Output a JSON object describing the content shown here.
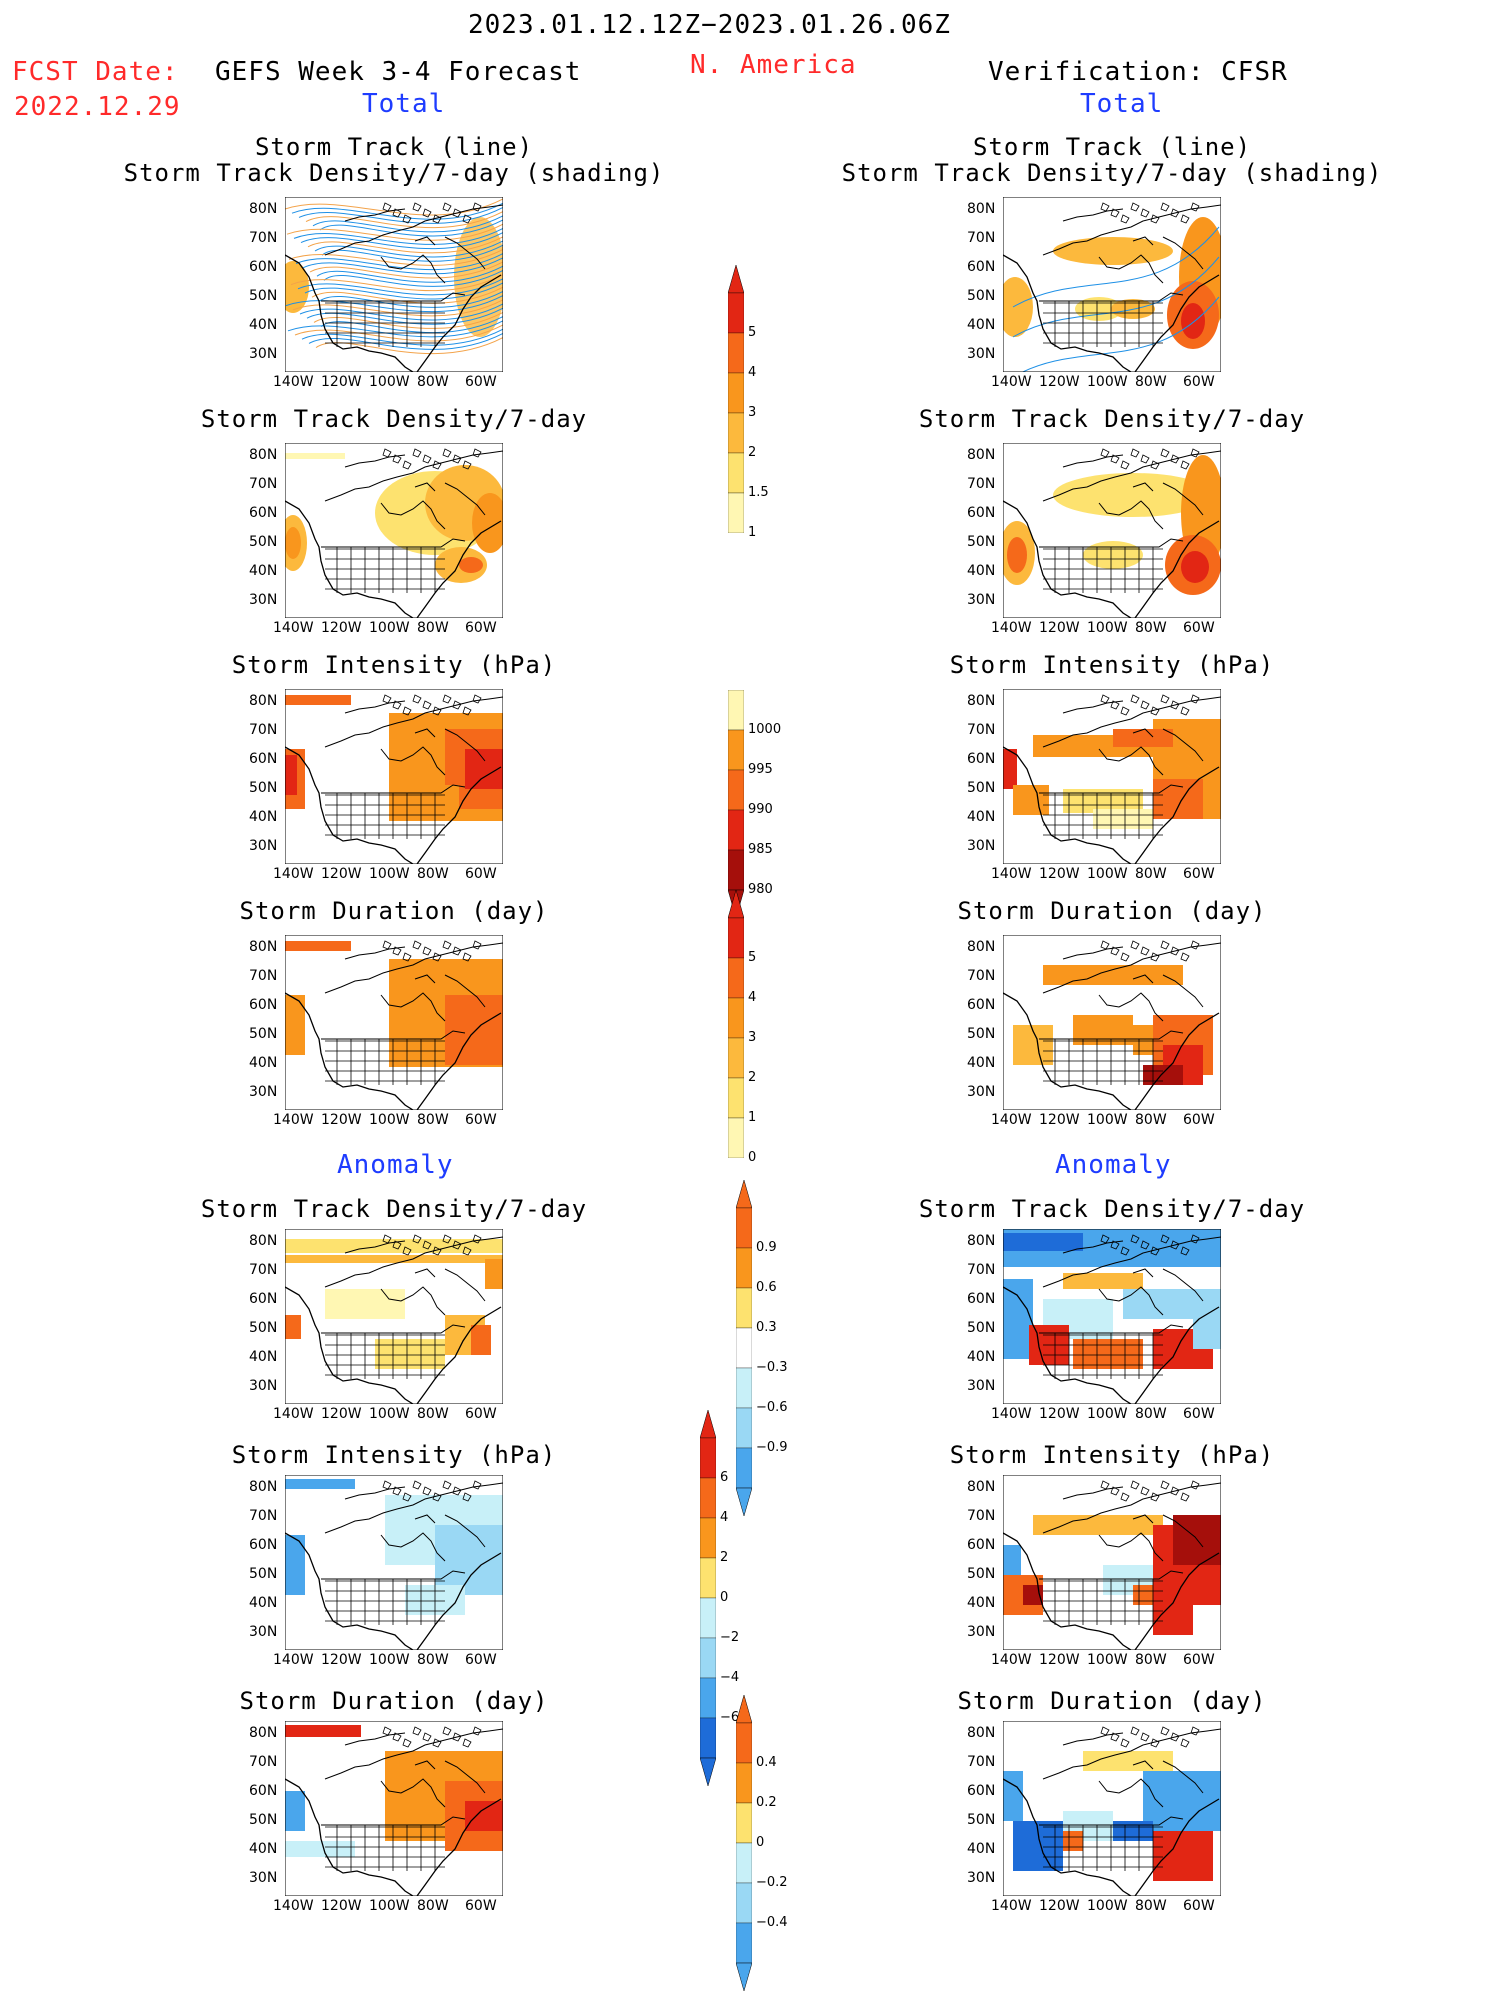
{
  "header": {
    "period": "2023.01.12.12Z−2023.01.26.06Z",
    "fcst_label": "FCST Date:",
    "fcst_date": "2022.12.29",
    "left_title": "GEFS Week 3-4 Forecast",
    "region": "N. America",
    "right_title": "Verification: CFSR",
    "total_left": "Total",
    "total_right": "Total",
    "anom_left": "Anomaly",
    "anom_right": "Anomaly"
  },
  "axes": {
    "lat": [
      "80N",
      "70N",
      "60N",
      "50N",
      "40N",
      "30N"
    ],
    "lon": [
      "140W",
      "120W",
      "100W",
      "80W",
      "60W"
    ]
  },
  "colors": {
    "pale_yellow": "#fff7b3",
    "yellow": "#fde26f",
    "light_orange": "#fcb93d",
    "orange": "#f9961d",
    "dark_orange": "#f5691a",
    "red": "#e22614",
    "dark_red": "#a50f0b",
    "light_blue": "#c8f0f8",
    "sky_blue": "#9ad8f4",
    "blue": "#4aa6ec",
    "dark_blue": "#1e6cd8",
    "track_blue": "#1e90e6",
    "track_orange": "#f3a34a"
  },
  "panels": {
    "r1_left": {
      "title1": "Storm Track (line)",
      "title2": "Storm Track Density/7-day (shading)"
    },
    "r1_right": {
      "title1": "Storm Track (line)",
      "title2": "Storm Track Density/7-day (shading)"
    },
    "r2_left": {
      "title1": "Storm Track Density/7-day"
    },
    "r2_right": {
      "title1": "Storm Track Density/7-day"
    },
    "r3_left": {
      "title1": "Storm Intensity (hPa)"
    },
    "r3_right": {
      "title1": "Storm Intensity (hPa)"
    },
    "r4_left": {
      "title1": "Storm Duration (day)"
    },
    "r4_right": {
      "title1": "Storm Duration (day)"
    },
    "r5_left": {
      "title1": "Storm Track Density/7-day"
    },
    "r5_right": {
      "title1": "Storm Track Density/7-day"
    },
    "r6_left": {
      "title1": "Storm Intensity (hPa)"
    },
    "r6_right": {
      "title1": "Storm Intensity (hPa)"
    },
    "r7_left": {
      "title1": "Storm Duration (day)"
    },
    "r7_right": {
      "title1": "Storm Duration (day)"
    }
  },
  "colorbars": {
    "density": [
      "5",
      "4",
      "3",
      "2",
      "1.5",
      "1"
    ],
    "intensity": [
      "1000",
      "995",
      "990",
      "985",
      "980"
    ],
    "duration": [
      "5",
      "4",
      "3",
      "2",
      "1",
      "0"
    ],
    "density_anom": [
      "0.9",
      "0.6",
      "0.3",
      "−0.3",
      "−0.6",
      "−0.9"
    ],
    "intensity_anom": [
      "6",
      "4",
      "2",
      "0",
      "−2",
      "−4",
      "−6"
    ],
    "duration_anom": [
      "0.4",
      "0.2",
      "0",
      "−0.2",
      "−0.4"
    ]
  }
}
